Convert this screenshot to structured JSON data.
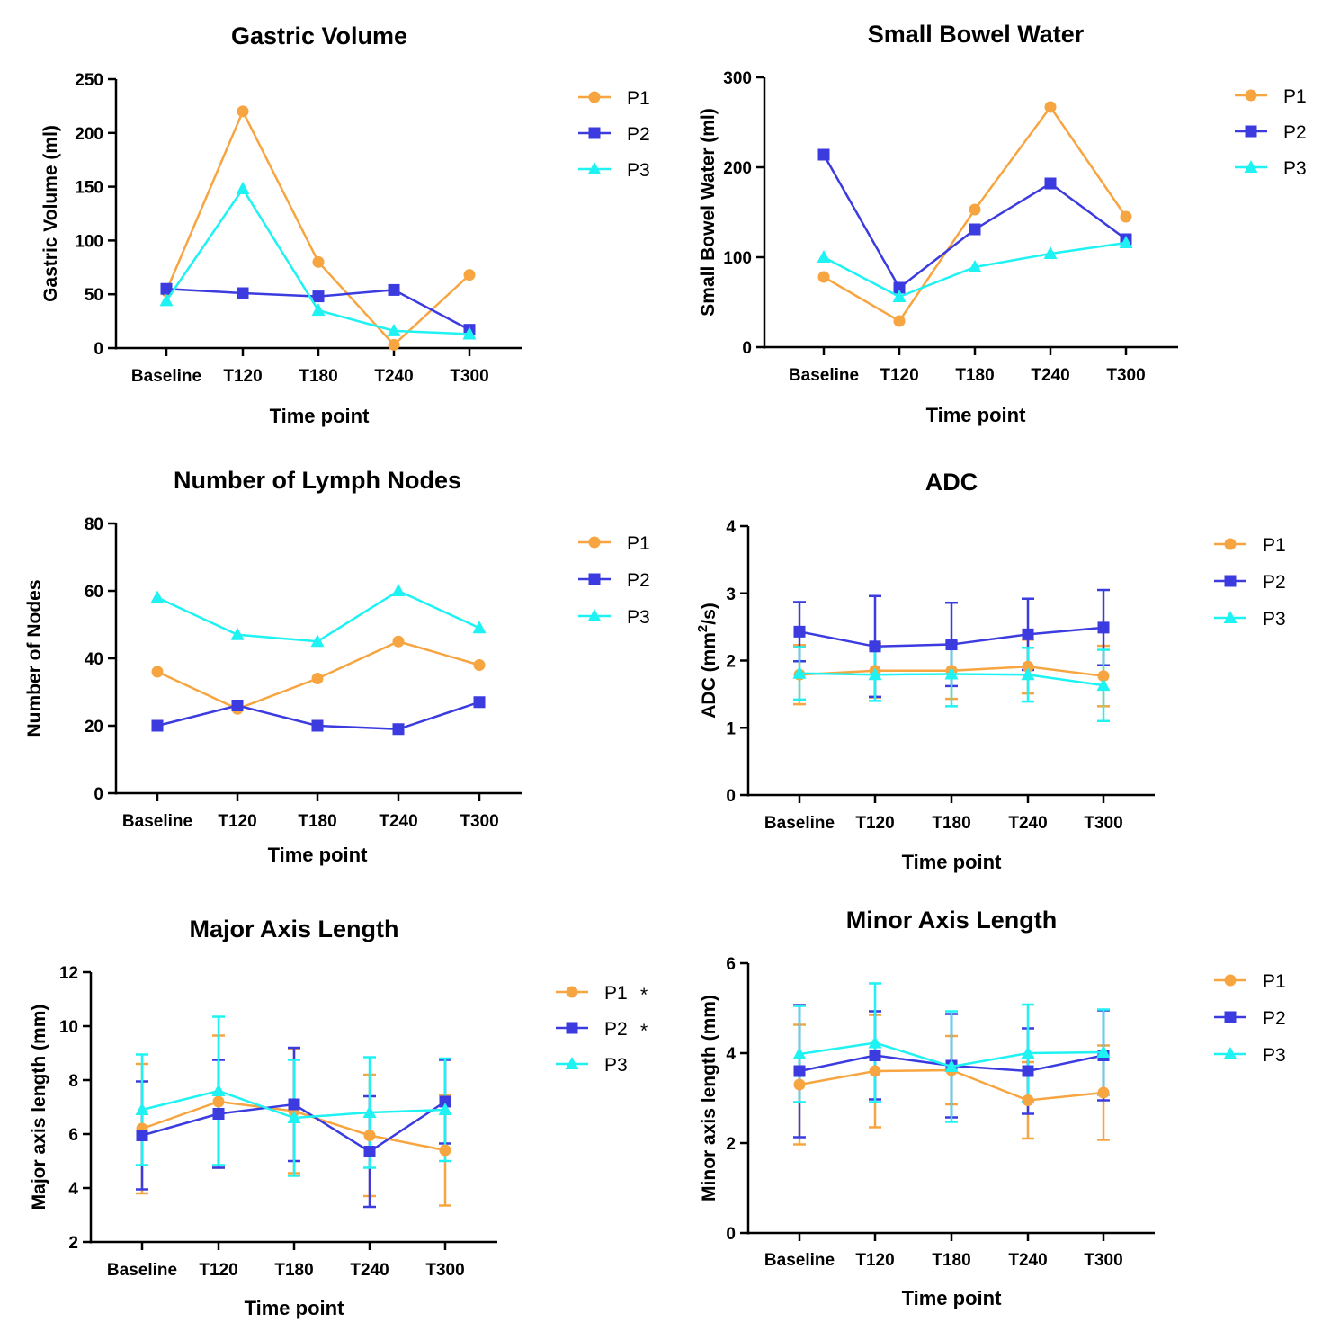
{
  "chart_data": [
    {
      "type": "line",
      "title": "Gastric Volume",
      "xlabel": "Time point",
      "ylabel": "Gastric Volume (ml)",
      "categories": [
        "Baseline",
        "T120",
        "T180",
        "T240",
        "T300"
      ],
      "ylim": [
        0,
        250
      ],
      "yticks": [
        0,
        50,
        100,
        150,
        200,
        250
      ],
      "series": [
        {
          "name": "P1",
          "color": "#F7A541",
          "marker": "circle",
          "values": [
            53,
            220,
            80,
            3,
            68
          ]
        },
        {
          "name": "P2",
          "color": "#3B3BE0",
          "marker": "square",
          "values": [
            55,
            51,
            48,
            54,
            17
          ]
        },
        {
          "name": "P3",
          "color": "#1EF2F2",
          "marker": "triangle",
          "values": [
            44,
            148,
            35,
            16,
            13
          ]
        }
      ],
      "legend": "right"
    },
    {
      "type": "line",
      "title": "Small Bowel Water",
      "xlabel": "Time point",
      "ylabel": "Small Bowel Water (ml)",
      "categories": [
        "Baseline",
        "T120",
        "T180",
        "T240",
        "T300"
      ],
      "ylim": [
        0,
        300
      ],
      "yticks": [
        0,
        100,
        200,
        300
      ],
      "series": [
        {
          "name": "P1",
          "color": "#F7A541",
          "marker": "circle",
          "values": [
            78,
            29,
            153,
            267,
            145
          ]
        },
        {
          "name": "P2",
          "color": "#3B3BE0",
          "marker": "square",
          "values": [
            214,
            66,
            131,
            182,
            120
          ]
        },
        {
          "name": "P3",
          "color": "#1EF2F2",
          "marker": "triangle",
          "values": [
            100,
            56,
            89,
            104,
            116
          ]
        }
      ],
      "legend": "right"
    },
    {
      "type": "line",
      "title": "Number of Lymph Nodes",
      "xlabel": "Time point",
      "ylabel": "Number of Nodes",
      "categories": [
        "Baseline",
        "T120",
        "T180",
        "T240",
        "T300"
      ],
      "ylim": [
        0,
        80
      ],
      "yticks": [
        0,
        20,
        40,
        60,
        80
      ],
      "series": [
        {
          "name": "P1",
          "color": "#F7A541",
          "marker": "circle",
          "values": [
            36,
            25,
            34,
            45,
            38
          ]
        },
        {
          "name": "P2",
          "color": "#3B3BE0",
          "marker": "square",
          "values": [
            20,
            26,
            20,
            19,
            27
          ]
        },
        {
          "name": "P3",
          "color": "#1EF2F2",
          "marker": "triangle",
          "values": [
            58,
            47,
            45,
            60,
            49
          ]
        }
      ],
      "legend": "right"
    },
    {
      "type": "line",
      "title": "ADC",
      "xlabel": "Time point",
      "ylabel_main": "ADC (mm",
      "ylabel_sup": "2",
      "ylabel_end": "/s)",
      "categories": [
        "Baseline",
        "T120",
        "T180",
        "T240",
        "T300"
      ],
      "ylim": [
        0,
        4
      ],
      "yticks": [
        0,
        1,
        2,
        3,
        4
      ],
      "series": [
        {
          "name": "P1",
          "color": "#F7A541",
          "marker": "circle",
          "values": [
            1.79,
            1.85,
            1.85,
            1.91,
            1.77
          ],
          "errors": [
            0.44,
            0.4,
            0.42,
            0.4,
            0.45
          ]
        },
        {
          "name": "P2",
          "color": "#3B3BE0",
          "marker": "square",
          "values": [
            2.43,
            2.21,
            2.24,
            2.39,
            2.49
          ],
          "errors": [
            0.44,
            0.75,
            0.62,
            0.53,
            0.56
          ]
        },
        {
          "name": "P3",
          "color": "#1EF2F2",
          "marker": "triangle",
          "values": [
            1.81,
            1.79,
            1.8,
            1.79,
            1.63
          ],
          "errors": [
            0.39,
            0.39,
            0.48,
            0.4,
            0.53
          ]
        }
      ],
      "legend": "right"
    },
    {
      "type": "line",
      "title": "Major Axis Length",
      "xlabel": "Time point",
      "ylabel": "Major axis length (mm)",
      "categories": [
        "Baseline",
        "T120",
        "T180",
        "T240",
        "T300"
      ],
      "ylim": [
        2,
        12
      ],
      "yticks": [
        2,
        4,
        6,
        8,
        10,
        12
      ],
      "series": [
        {
          "name": "P1",
          "color": "#F7A541",
          "marker": "circle",
          "star": "*",
          "values": [
            6.2,
            7.2,
            6.85,
            5.95,
            5.4
          ],
          "errors": [
            2.4,
            2.45,
            2.3,
            2.25,
            2.05
          ]
        },
        {
          "name": "P2",
          "color": "#3B3BE0",
          "marker": "square",
          "star": "*",
          "values": [
            5.95,
            6.75,
            7.1,
            5.35,
            7.2
          ],
          "errors": [
            2.0,
            2.0,
            2.1,
            2.05,
            1.55
          ]
        },
        {
          "name": "P3",
          "color": "#1EF2F2",
          "marker": "triangle",
          "values": [
            6.9,
            7.6,
            6.6,
            6.8,
            6.9
          ],
          "errors": [
            2.05,
            2.75,
            2.15,
            2.05,
            1.9
          ]
        }
      ],
      "legend": "right"
    },
    {
      "type": "line",
      "title": "Minor Axis Length",
      "xlabel": "Time point",
      "ylabel": "Minor axis length (mm)",
      "categories": [
        "Baseline",
        "T120",
        "T180",
        "T240",
        "T300"
      ],
      "ylim": [
        0,
        6
      ],
      "yticks": [
        0,
        2,
        4,
        6
      ],
      "series": [
        {
          "name": "P1",
          "color": "#F7A541",
          "marker": "circle",
          "values": [
            3.3,
            3.6,
            3.62,
            2.95,
            3.12
          ],
          "errors": [
            1.33,
            1.25,
            0.76,
            0.85,
            1.05
          ]
        },
        {
          "name": "P2",
          "color": "#3B3BE0",
          "marker": "square",
          "values": [
            3.6,
            3.95,
            3.72,
            3.6,
            3.95
          ],
          "errors": [
            1.47,
            0.98,
            1.15,
            0.95,
            1.0
          ]
        },
        {
          "name": "P3",
          "color": "#1EF2F2",
          "marker": "triangle",
          "values": [
            3.98,
            4.23,
            3.7,
            4.0,
            4.02
          ],
          "errors": [
            1.07,
            1.32,
            1.23,
            1.08,
            0.95
          ]
        }
      ],
      "legend": "right"
    }
  ]
}
